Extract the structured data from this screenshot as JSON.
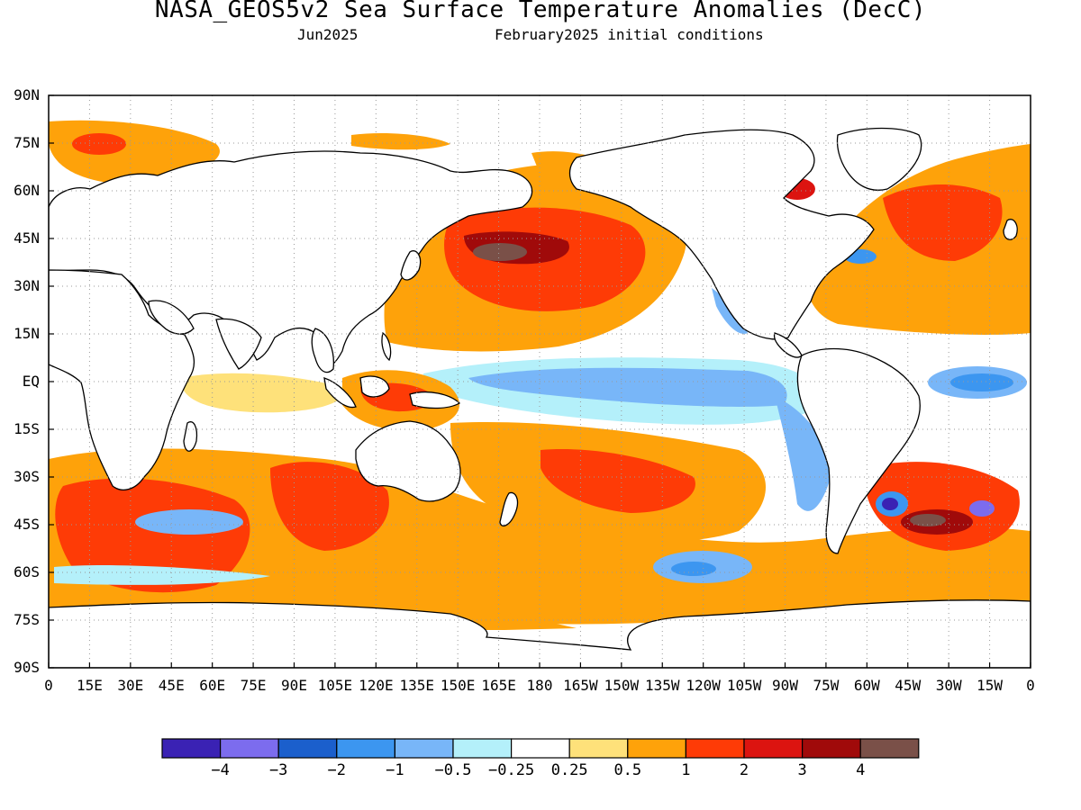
{
  "title": "NASA_GEOS5v2 Sea Surface Temperature Anomalies (DecC)",
  "subtitle_left": "Jun2025",
  "subtitle_right": "February2025 initial conditions",
  "lat_labels": [
    "90N",
    "75N",
    "60N",
    "45N",
    "30N",
    "15N",
    "EQ",
    "15S",
    "30S",
    "45S",
    "60S",
    "75S",
    "90S"
  ],
  "lon_labels": [
    "0",
    "15E",
    "30E",
    "45E",
    "60E",
    "75E",
    "90E",
    "105E",
    "120E",
    "135E",
    "150E",
    "165E",
    "180",
    "165W",
    "150W",
    "135W",
    "120W",
    "105W",
    "90W",
    "75W",
    "60W",
    "45W",
    "30W",
    "15W",
    "0"
  ],
  "colorbar": {
    "colors": [
      "#3a22b4",
      "#7c6cee",
      "#1b5fcc",
      "#3c96f0",
      "#78b6f8",
      "#b4f0fa",
      "#ffffff",
      "#fee17a",
      "#fea20a",
      "#fe3b06",
      "#dc1410",
      "#a00a0a",
      "#7a5048"
    ],
    "labels": [
      "−4",
      "−3",
      "−2",
      "−1",
      "−0.5",
      "−0.25",
      "0.25",
      "0.5",
      "1",
      "2",
      "3",
      "4"
    ]
  }
}
